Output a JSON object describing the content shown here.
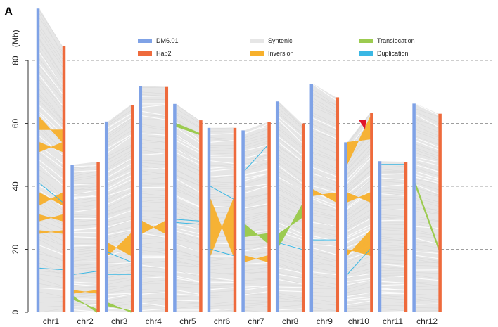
{
  "panel_label": "A",
  "colors": {
    "ref": "#7fa2e6",
    "hap": "#ee6a3c",
    "syntenic": "#e6e6e6",
    "inversion": "#f7b02c",
    "translocation": "#9ccb50",
    "duplication": "#3ab7e4",
    "marker": "#e0152b"
  },
  "chart_data": {
    "type": "synteny",
    "title": "",
    "xlabel": "",
    "ylabel": "(Mb)",
    "ylim": [
      0,
      97
    ],
    "yticks": [
      0,
      20,
      40,
      60,
      80
    ],
    "grid": "dashed-horizontal",
    "legend_placement": "top",
    "legend": [
      {
        "name": "DM6.01",
        "kind": "bar",
        "color_key": "ref"
      },
      {
        "name": "Syntenic",
        "kind": "bar",
        "color_key": "syntenic"
      },
      {
        "name": "Translocation",
        "kind": "bar",
        "color_key": "translocation"
      },
      {
        "name": "Hap2",
        "kind": "bar",
        "color_key": "hap"
      },
      {
        "name": "Inversion",
        "kind": "bar",
        "color_key": "inversion"
      },
      {
        "name": "Duplication",
        "kind": "bar",
        "color_key": "duplication"
      }
    ],
    "categories": [
      "chr1",
      "chr2",
      "chr3",
      "chr4",
      "chr5",
      "chr6",
      "chr7",
      "chr8",
      "chr9",
      "chr10",
      "chr11",
      "chr12"
    ],
    "series": [
      {
        "name": "DM6.01",
        "values": [
          96.5,
          46.9,
          60.6,
          71.9,
          66.2,
          58.6,
          57.8,
          67.0,
          72.6,
          54.0,
          48.0,
          66.3
        ]
      },
      {
        "name": "Hap2",
        "values": [
          84.5,
          47.8,
          65.9,
          71.6,
          61.0,
          58.6,
          60.4,
          60.0,
          68.3,
          63.4,
          47.8,
          63.1
        ]
      }
    ],
    "inversions": [
      {
        "chr": "chr1",
        "ref": [
          62,
          58
        ],
        "hap": [
          54,
          58
        ]
      },
      {
        "chr": "chr1",
        "ref": [
          54,
          51
        ],
        "hap": [
          51,
          54
        ]
      },
      {
        "chr": "chr1",
        "ref": [
          38,
          34
        ],
        "hap": [
          34,
          38
        ]
      },
      {
        "chr": "chr1",
        "ref": [
          31,
          29
        ],
        "hap": [
          29,
          31
        ]
      },
      {
        "chr": "chr1",
        "ref": [
          26,
          25
        ],
        "hap": [
          25,
          26
        ]
      },
      {
        "chr": "chr2",
        "ref": [
          7,
          6
        ],
        "hap": [
          6,
          7
        ]
      },
      {
        "chr": "chr3",
        "ref": [
          22,
          18
        ],
        "hap": [
          18,
          25
        ]
      },
      {
        "chr": "chr4",
        "ref": [
          29,
          25
        ],
        "hap": [
          25,
          29
        ]
      },
      {
        "chr": "chr6",
        "ref": [
          36,
          18
        ],
        "hap": [
          18,
          36
        ]
      },
      {
        "chr": "chr7",
        "ref": [
          18,
          16
        ],
        "hap": [
          16,
          18
        ]
      },
      {
        "chr": "chr9",
        "ref": [
          39,
          37
        ],
        "hap": [
          35,
          38
        ]
      },
      {
        "chr": "chr10",
        "ref": [
          54,
          47
        ],
        "hap": [
          55,
          62
        ]
      },
      {
        "chr": "chr10",
        "ref": [
          38,
          35
        ],
        "hap": [
          35,
          38
        ]
      },
      {
        "chr": "chr10",
        "ref": [
          20,
          18
        ],
        "hap": [
          18,
          26
        ]
      }
    ],
    "translocations": [
      {
        "chr": "chr2",
        "ref": [
          5,
          4
        ],
        "hap": [
          0,
          1
        ]
      },
      {
        "chr": "chr3",
        "ref": [
          3,
          2
        ],
        "hap": [
          0,
          0.5
        ]
      },
      {
        "chr": "chr5",
        "ref": [
          60,
          59
        ],
        "hap": [
          57,
          56.5
        ]
      },
      {
        "chr": "chr7",
        "ref": [
          28,
          24
        ],
        "hap": [
          22,
          25
        ]
      },
      {
        "chr": "chr8",
        "ref": [
          25,
          21
        ],
        "hap": [
          30,
          34
        ]
      },
      {
        "chr": "chr12",
        "ref": [
          41,
          40
        ],
        "hap": [
          21,
          20
        ]
      }
    ],
    "duplications": [
      {
        "chr": "chr1",
        "ref": 41,
        "hap": 35
      },
      {
        "chr": "chr1",
        "ref": 14,
        "hap": 13.5
      },
      {
        "chr": "chr2",
        "ref": 12,
        "hap": 13
      },
      {
        "chr": "chr3",
        "ref": 12,
        "hap": 12
      },
      {
        "chr": "chr3",
        "ref": 19,
        "hap": 16
      },
      {
        "chr": "chr5",
        "ref": 28.5,
        "hap": 28
      },
      {
        "chr": "chr5",
        "ref": 29.5,
        "hap": 29
      },
      {
        "chr": "chr6",
        "ref": 40,
        "hap": 36
      },
      {
        "chr": "chr6",
        "ref": 20,
        "hap": 18
      },
      {
        "chr": "chr7",
        "ref": 45,
        "hap": 53
      },
      {
        "chr": "chr8",
        "ref": 22,
        "hap": 20
      },
      {
        "chr": "chr9",
        "ref": 23,
        "hap": 23
      },
      {
        "chr": "chr10",
        "ref": 12,
        "hap": 20
      },
      {
        "chr": "chr11",
        "ref": 47,
        "hap": 47
      }
    ],
    "markers": [
      {
        "chr": "chr10",
        "at": 60,
        "shape": "triangle"
      }
    ]
  }
}
